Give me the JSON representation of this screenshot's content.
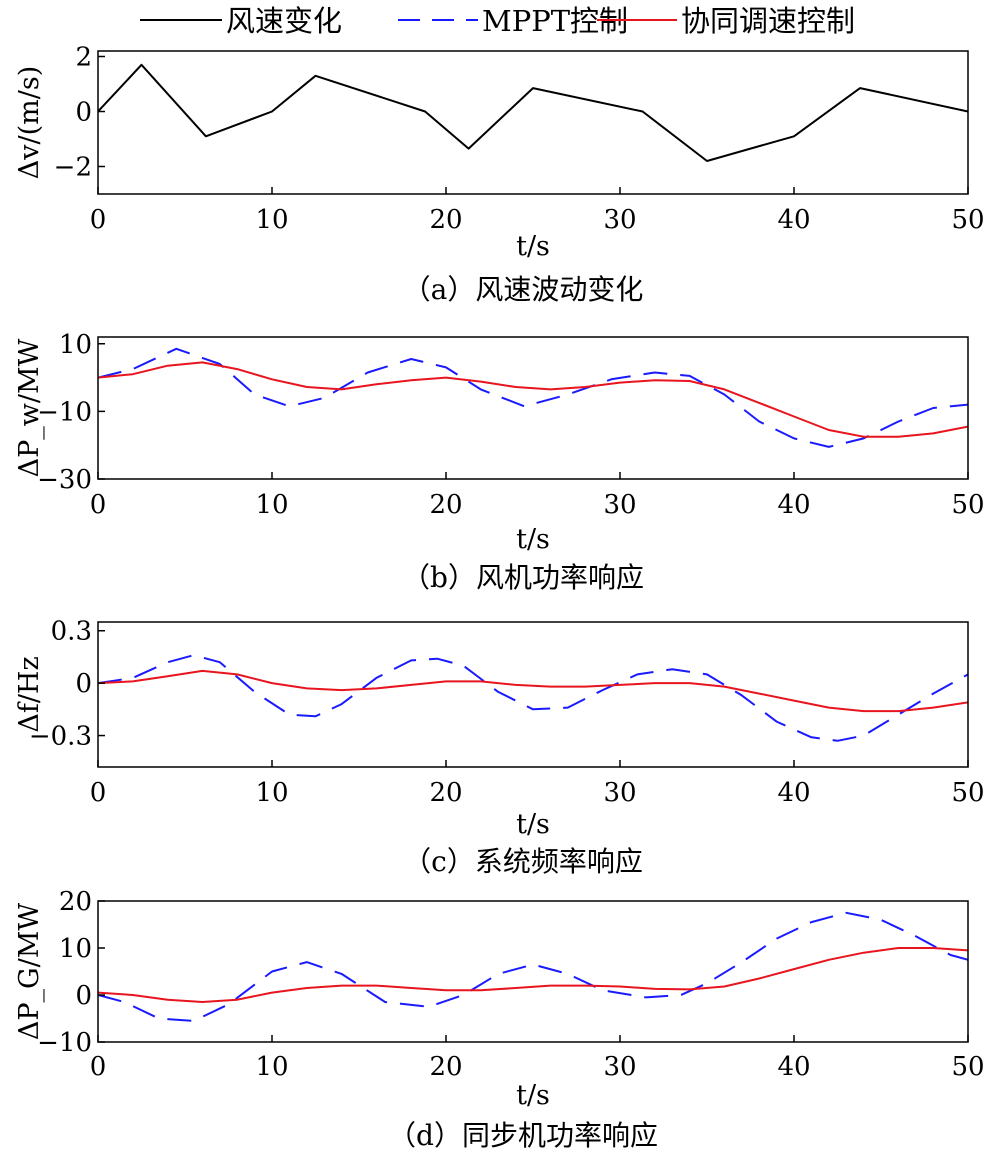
{
  "legend": {
    "entries": [
      {
        "key": "wind",
        "label": "风速变化",
        "color": "#000000",
        "dash": "solid"
      },
      {
        "key": "mppt",
        "label": "MPPT控制",
        "color": "#1a1aff",
        "dash": "dashed"
      },
      {
        "key": "coord",
        "label": "协同调速控制",
        "color": "#e8141e",
        "dash": "solid"
      }
    ]
  },
  "chart_data": [
    {
      "id": "a",
      "type": "line",
      "caption": "（a）风速波动变化",
      "xlabel": "t/s",
      "ylabel": "Δv/(m/s)",
      "xlim": [
        0,
        50
      ],
      "ylim": [
        -3,
        2.2
      ],
      "xticks": [
        0,
        10,
        20,
        30,
        40,
        50
      ],
      "yticks": [
        2,
        0,
        -2
      ],
      "series": [
        {
          "name": "风速变化",
          "x": [
            0,
            2.5,
            6.2,
            10,
            12.5,
            18.8,
            21.3,
            25,
            31.3,
            35,
            40,
            43.8,
            50
          ],
          "y": [
            0,
            1.7,
            -0.9,
            0,
            1.3,
            0,
            -1.35,
            0.85,
            0,
            -1.8,
            -0.9,
            0.85,
            0
          ]
        }
      ]
    },
    {
      "id": "b",
      "type": "line",
      "caption": "（b）风机功率响应",
      "xlabel": "t/s",
      "ylabel": "ΔP_w/MW",
      "xlim": [
        0,
        50
      ],
      "ylim": [
        -30,
        12
      ],
      "xticks": [
        0,
        10,
        20,
        30,
        40,
        50
      ],
      "yticks": [
        10,
        -10,
        -30
      ],
      "series": [
        {
          "name": "MPPT控制",
          "x": [
            0,
            2,
            4.5,
            7,
            9,
            11,
            13,
            15.5,
            18,
            20,
            22,
            24.5,
            27,
            29.5,
            32,
            34,
            36,
            38,
            40,
            42,
            44,
            46,
            48,
            50
          ],
          "y": [
            0,
            2.5,
            8.5,
            4,
            -5,
            -8.5,
            -6,
            1.5,
            5.5,
            3,
            -3.5,
            -8.5,
            -5,
            -0.5,
            1.5,
            0.5,
            -5,
            -13,
            -18,
            -20.5,
            -18,
            -13,
            -9,
            -8
          ]
        },
        {
          "name": "协同调速控制",
          "x": [
            0,
            2,
            4,
            6,
            8,
            10,
            12,
            14,
            16,
            18,
            20,
            22,
            24,
            26,
            28,
            30,
            32,
            34,
            36,
            38,
            40,
            42,
            44,
            46,
            48,
            50
          ],
          "y": [
            0,
            1,
            3.5,
            4.5,
            2.5,
            -0.5,
            -2.8,
            -3.5,
            -2,
            -0.8,
            0,
            -1.2,
            -2.8,
            -3.5,
            -2.8,
            -1.5,
            -0.8,
            -1,
            -3.5,
            -7.5,
            -11.5,
            -15.5,
            -17.5,
            -17.5,
            -16.5,
            -14.5
          ]
        }
      ]
    },
    {
      "id": "c",
      "type": "line",
      "caption": "（c）系统频率响应",
      "xlabel": "t/s",
      "ylabel": "Δf/Hz",
      "xlim": [
        0,
        50
      ],
      "ylim": [
        -0.48,
        0.35
      ],
      "xticks": [
        0,
        10,
        20,
        30,
        40,
        50
      ],
      "yticks": [
        0.3,
        0,
        -0.3
      ],
      "series": [
        {
          "name": "MPPT控制",
          "x": [
            0,
            2,
            4,
            5.5,
            7,
            9,
            11,
            12.5,
            14,
            16,
            18,
            19.5,
            21,
            23,
            25,
            27,
            29,
            31,
            33,
            35,
            37,
            39,
            41,
            42.5,
            44,
            46,
            48,
            50
          ],
          "y": [
            0,
            0.03,
            0.12,
            0.16,
            0.12,
            -0.05,
            -0.18,
            -0.19,
            -0.12,
            0.03,
            0.13,
            0.14,
            0.1,
            -0.05,
            -0.15,
            -0.14,
            -0.04,
            0.05,
            0.08,
            0.05,
            -0.07,
            -0.22,
            -0.31,
            -0.33,
            -0.3,
            -0.18,
            -0.06,
            0.05
          ]
        },
        {
          "name": "协同调速控制",
          "x": [
            0,
            2,
            4,
            6,
            8,
            10,
            12,
            14,
            16,
            18,
            20,
            22,
            24,
            26,
            28,
            30,
            32,
            34,
            36,
            38,
            40,
            42,
            44,
            46,
            48,
            50
          ],
          "y": [
            0,
            0.01,
            0.04,
            0.07,
            0.05,
            0,
            -0.03,
            -0.04,
            -0.03,
            -0.01,
            0.01,
            0.01,
            -0.01,
            -0.02,
            -0.02,
            -0.01,
            0,
            0,
            -0.02,
            -0.06,
            -0.1,
            -0.14,
            -0.16,
            -0.16,
            -0.14,
            -0.11
          ]
        }
      ]
    },
    {
      "id": "d",
      "type": "line",
      "caption": "（d）同步机功率响应",
      "xlabel": "t/s",
      "ylabel": "ΔP_G/MW",
      "xlim": [
        0,
        50
      ],
      "ylim": [
        -10,
        20
      ],
      "xticks": [
        0,
        10,
        20,
        30,
        40,
        50
      ],
      "yticks": [
        20,
        10,
        0,
        -10
      ],
      "series": [
        {
          "name": "MPPT控制",
          "x": [
            0,
            1.5,
            3.5,
            5.5,
            7.5,
            10,
            12,
            14,
            16.5,
            19,
            21,
            23,
            25,
            27,
            29,
            31.5,
            33.5,
            35,
            37,
            39,
            41,
            43,
            45,
            47,
            49,
            50
          ],
          "y": [
            0,
            -1.5,
            -5,
            -5.5,
            -2,
            5,
            7,
            4.5,
            -1.5,
            -2.5,
            0,
            4.5,
            6.5,
            4.5,
            1,
            -0.5,
            0,
            2.5,
            7,
            12,
            15.5,
            17.5,
            16,
            12.5,
            8.5,
            7.5
          ]
        },
        {
          "name": "协同调速控制",
          "x": [
            0,
            2,
            4,
            6,
            8,
            10,
            12,
            14,
            16,
            18,
            20,
            22,
            24,
            26,
            28,
            30,
            32,
            34,
            36,
            38,
            40,
            42,
            44,
            46,
            48,
            50
          ],
          "y": [
            0.5,
            0,
            -1,
            -1.5,
            -1,
            0.5,
            1.5,
            2,
            2,
            1.5,
            1,
            1,
            1.5,
            2,
            2,
            1.8,
            1.3,
            1.2,
            1.8,
            3.5,
            5.5,
            7.5,
            9,
            10,
            10,
            9.5
          ]
        }
      ]
    }
  ]
}
